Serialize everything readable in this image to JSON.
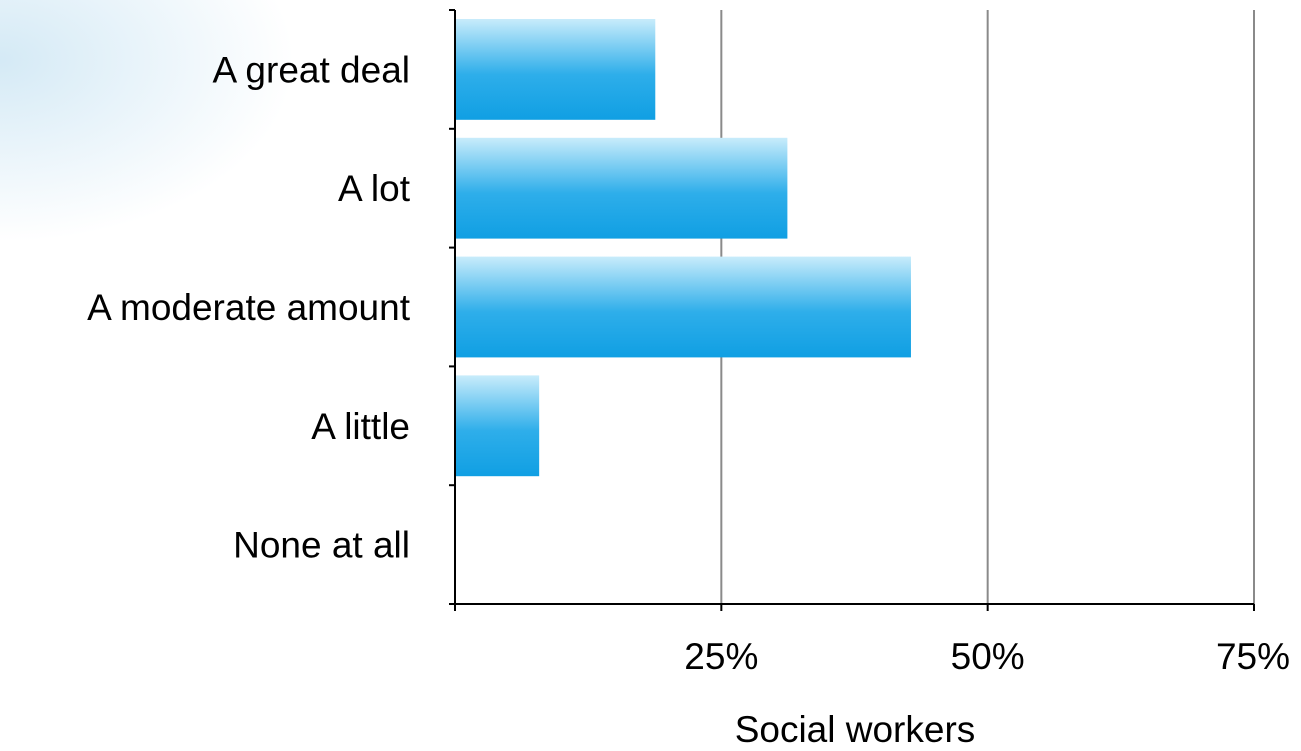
{
  "chart_data": {
    "type": "bar",
    "orientation": "horizontal",
    "categories": [
      "A great deal",
      "A lot",
      "A moderate amount",
      "A little",
      "None at all"
    ],
    "series": [
      {
        "values": [
          18.8,
          31.2,
          42.8,
          7.9,
          0
        ]
      }
    ],
    "x_ticks": [
      0,
      25,
      50,
      75
    ],
    "x_tick_labels": [
      "",
      "25%",
      "50%",
      "75%"
    ],
    "xlim": [
      0,
      75
    ],
    "xlabel": "Social workers",
    "ylabel": "",
    "title": "",
    "grid": "vertical",
    "legend": "none",
    "colors": {
      "bar_top": "#c8ecfb",
      "bar_bottom": "#109fe3",
      "grid": "#8a8a8a",
      "axis": "#000000"
    }
  }
}
